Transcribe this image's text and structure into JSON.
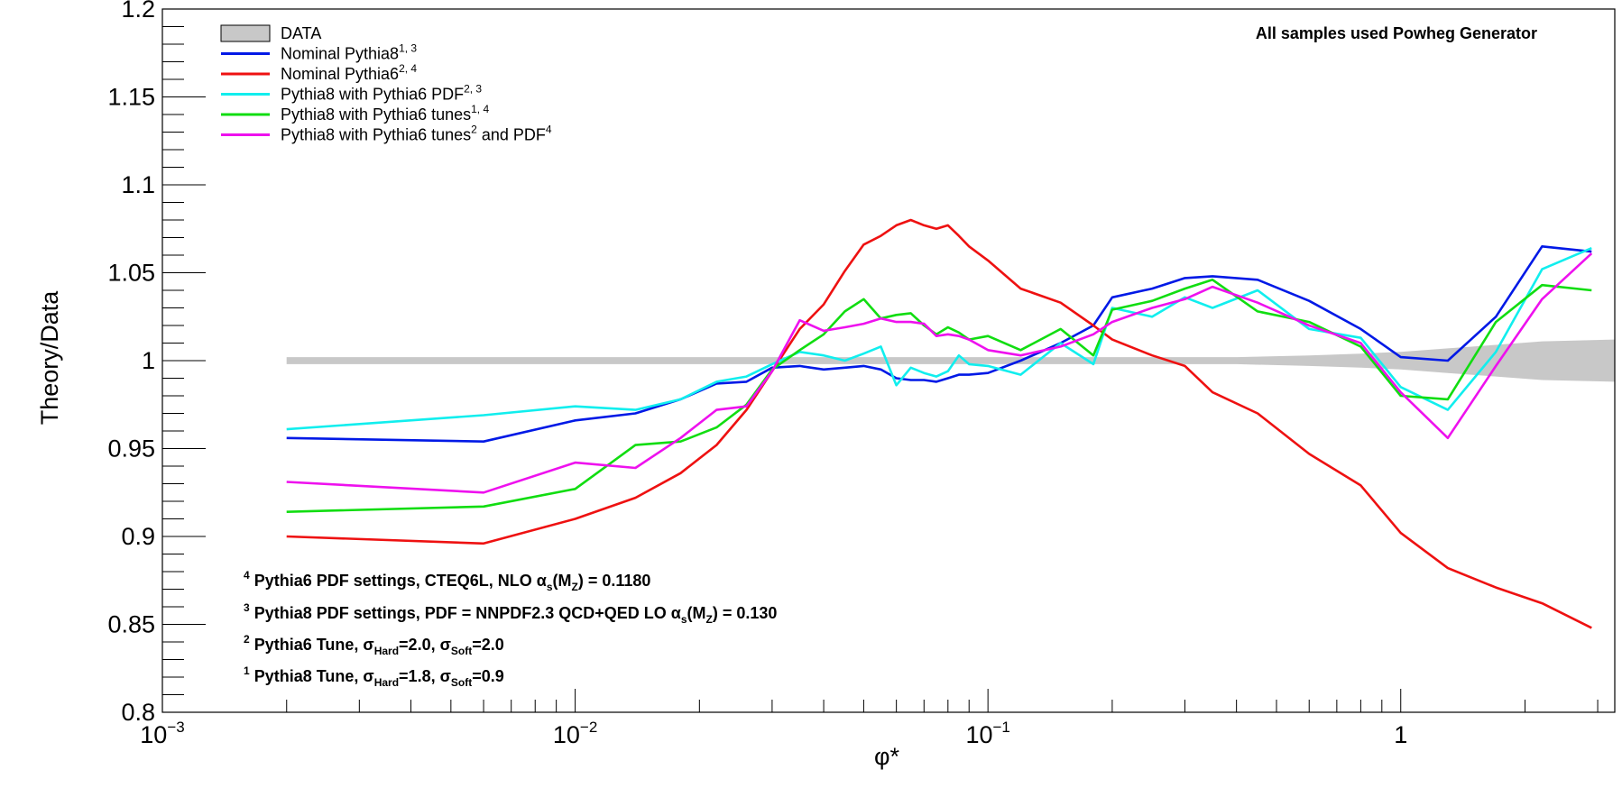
{
  "chart_data": {
    "type": "line",
    "title": "",
    "annotation": "All samples used Powheg Generator",
    "xlabel": "φ*",
    "ylabel": "Theory/Data",
    "xscale": "log",
    "xlim": [
      0.001,
      3.3
    ],
    "ylim": [
      0.8,
      1.2
    ],
    "grid": false,
    "legend_position": "top-left",
    "y_ticks": [
      "0.8",
      "0.85",
      "0.9",
      "0.95",
      "1",
      "1.05",
      "1.1",
      "1.15",
      "1.2"
    ],
    "x_ticks": [
      {
        "base": "10",
        "exp": "−3"
      },
      {
        "base": "10",
        "exp": "−2"
      },
      {
        "base": "10",
        "exp": "−1"
      },
      {
        "base": "1",
        "exp": ""
      }
    ],
    "legend": [
      {
        "label": "DATA",
        "sup": "",
        "color": "#c8c8c8",
        "kind": "band"
      },
      {
        "label": "Nominal Pythia8",
        "sup": "1, 3",
        "color": "#0019e6",
        "kind": "line"
      },
      {
        "label": "Nominal Pythia6",
        "sup": "2, 4",
        "color": "#ee1111",
        "kind": "line"
      },
      {
        "label": "Pythia8 with Pythia6 PDF",
        "sup": "2, 3",
        "color": "#11eeee",
        "kind": "line"
      },
      {
        "label": "Pythia8 with Pythia6 tunes",
        "sup": "1, 4",
        "color": "#11dd11",
        "kind": "line"
      },
      {
        "label": "Pythia8 with Pythia6 tunes",
        "sup": "2",
        "tail": " and PDF",
        "tail_sup": "4",
        "color": "#ee11ee",
        "kind": "line"
      }
    ],
    "notes": [
      {
        "sup": "4",
        "text": "Pythia6 PDF settings, CTEQ6L, NLO  α",
        "sub1": "s",
        "mid": "(M",
        "sub2": "Z",
        "end": ") = 0.1180"
      },
      {
        "sup": "3",
        "text": "Pythia8 PDF settings, PDF = NNPDF2.3 QCD+QED LO  α",
        "sub1": "s",
        "mid": "(M",
        "sub2": "Z",
        "end": ") = 0.130"
      },
      {
        "sup": "2",
        "text": "Pythia6 Tune,  σ",
        "sub1": "Hard",
        "mid": "=2.0,  σ",
        "sub2": "Soft",
        "end": "=2.0"
      },
      {
        "sup": "1",
        "text": "Pythia8 Tune,  σ",
        "sub1": "Hard",
        "mid": "=1.8,  σ",
        "sub2": "Soft",
        "end": "=0.9"
      }
    ],
    "data_band": {
      "x": [
        0.002,
        0.004,
        0.006,
        0.01,
        0.02,
        0.05,
        0.1,
        0.2,
        0.4,
        0.6,
        0.8,
        1.0,
        1.3,
        1.7,
        2.2,
        3.3
      ],
      "err": [
        0.002,
        0.002,
        0.002,
        0.002,
        0.002,
        0.002,
        0.002,
        0.002,
        0.002,
        0.003,
        0.004,
        0.005,
        0.007,
        0.009,
        0.011,
        0.012
      ]
    },
    "series": [
      {
        "name": "Nominal Pythia8",
        "color": "#0019e6",
        "x": [
          0.002,
          0.006,
          0.01,
          0.014,
          0.018,
          0.022,
          0.026,
          0.03,
          0.035,
          0.04,
          0.045,
          0.05,
          0.055,
          0.06,
          0.065,
          0.07,
          0.075,
          0.08,
          0.085,
          0.09,
          0.1,
          0.12,
          0.15,
          0.18,
          0.2,
          0.25,
          0.3,
          0.35,
          0.45,
          0.6,
          0.8,
          1.0,
          1.3,
          1.7,
          2.2,
          2.9
        ],
        "y": [
          0.956,
          0.954,
          0.966,
          0.97,
          0.978,
          0.987,
          0.988,
          0.996,
          0.997,
          0.995,
          0.996,
          0.997,
          0.995,
          0.99,
          0.989,
          0.989,
          0.988,
          0.99,
          0.992,
          0.992,
          0.993,
          1.0,
          1.01,
          1.02,
          1.036,
          1.041,
          1.047,
          1.048,
          1.046,
          1.034,
          1.018,
          1.002,
          1.0,
          1.025,
          1.065,
          1.062
        ]
      },
      {
        "name": "Nominal Pythia6",
        "color": "#ee1111",
        "x": [
          0.002,
          0.006,
          0.01,
          0.014,
          0.018,
          0.022,
          0.026,
          0.03,
          0.035,
          0.04,
          0.045,
          0.05,
          0.055,
          0.06,
          0.065,
          0.07,
          0.075,
          0.08,
          0.085,
          0.09,
          0.1,
          0.12,
          0.15,
          0.18,
          0.2,
          0.25,
          0.3,
          0.35,
          0.45,
          0.6,
          0.8,
          1.0,
          1.3,
          1.7,
          2.2,
          2.9
        ],
        "y": [
          0.9,
          0.896,
          0.91,
          0.922,
          0.936,
          0.952,
          0.972,
          0.994,
          1.018,
          1.032,
          1.051,
          1.066,
          1.071,
          1.077,
          1.08,
          1.077,
          1.075,
          1.077,
          1.071,
          1.065,
          1.057,
          1.041,
          1.033,
          1.02,
          1.012,
          1.003,
          0.997,
          0.982,
          0.97,
          0.947,
          0.929,
          0.902,
          0.882,
          0.871,
          0.862,
          0.848
        ]
      },
      {
        "name": "Pythia8 with Pythia6 PDF",
        "color": "#11eeee",
        "x": [
          0.002,
          0.006,
          0.01,
          0.014,
          0.018,
          0.022,
          0.026,
          0.03,
          0.035,
          0.04,
          0.045,
          0.05,
          0.055,
          0.06,
          0.065,
          0.07,
          0.075,
          0.08,
          0.085,
          0.09,
          0.1,
          0.12,
          0.15,
          0.18,
          0.2,
          0.25,
          0.3,
          0.35,
          0.45,
          0.6,
          0.8,
          1.0,
          1.3,
          1.7,
          2.2,
          2.9
        ],
        "y": [
          0.961,
          0.969,
          0.974,
          0.972,
          0.978,
          0.988,
          0.991,
          0.998,
          1.005,
          1.003,
          1.0,
          1.004,
          1.008,
          0.986,
          0.996,
          0.993,
          0.991,
          0.994,
          1.003,
          0.998,
          0.997,
          0.992,
          1.01,
          0.998,
          1.03,
          1.025,
          1.036,
          1.03,
          1.04,
          1.018,
          1.013,
          0.985,
          0.972,
          1.005,
          1.052,
          1.064
        ]
      },
      {
        "name": "Pythia8 with Pythia6 tunes",
        "color": "#11dd11",
        "x": [
          0.002,
          0.006,
          0.01,
          0.014,
          0.018,
          0.022,
          0.026,
          0.03,
          0.035,
          0.04,
          0.045,
          0.05,
          0.055,
          0.06,
          0.065,
          0.07,
          0.075,
          0.08,
          0.085,
          0.09,
          0.1,
          0.12,
          0.15,
          0.18,
          0.2,
          0.25,
          0.3,
          0.35,
          0.45,
          0.6,
          0.8,
          1.0,
          1.3,
          1.7,
          2.2,
          2.9
        ],
        "y": [
          0.914,
          0.917,
          0.927,
          0.952,
          0.954,
          0.962,
          0.975,
          0.995,
          1.006,
          1.015,
          1.028,
          1.035,
          1.024,
          1.026,
          1.027,
          1.02,
          1.015,
          1.019,
          1.016,
          1.012,
          1.014,
          1.006,
          1.018,
          1.003,
          1.029,
          1.034,
          1.041,
          1.046,
          1.028,
          1.022,
          1.008,
          0.98,
          0.978,
          1.022,
          1.043,
          1.04
        ]
      },
      {
        "name": "Pythia8 with Pythia6 tunes and PDF",
        "color": "#ee11ee",
        "x": [
          0.002,
          0.006,
          0.01,
          0.014,
          0.018,
          0.022,
          0.026,
          0.03,
          0.035,
          0.04,
          0.045,
          0.05,
          0.055,
          0.06,
          0.065,
          0.07,
          0.075,
          0.08,
          0.085,
          0.09,
          0.1,
          0.12,
          0.15,
          0.18,
          0.2,
          0.25,
          0.3,
          0.35,
          0.45,
          0.6,
          0.8,
          1.0,
          1.3,
          1.7,
          2.2,
          2.9
        ],
        "y": [
          0.931,
          0.925,
          0.942,
          0.939,
          0.956,
          0.972,
          0.974,
          0.994,
          1.023,
          1.017,
          1.019,
          1.021,
          1.024,
          1.022,
          1.022,
          1.021,
          1.014,
          1.015,
          1.014,
          1.012,
          1.006,
          1.003,
          1.008,
          1.015,
          1.022,
          1.03,
          1.035,
          1.042,
          1.033,
          1.02,
          1.01,
          0.982,
          0.956,
          0.997,
          1.035,
          1.061
        ]
      }
    ]
  }
}
